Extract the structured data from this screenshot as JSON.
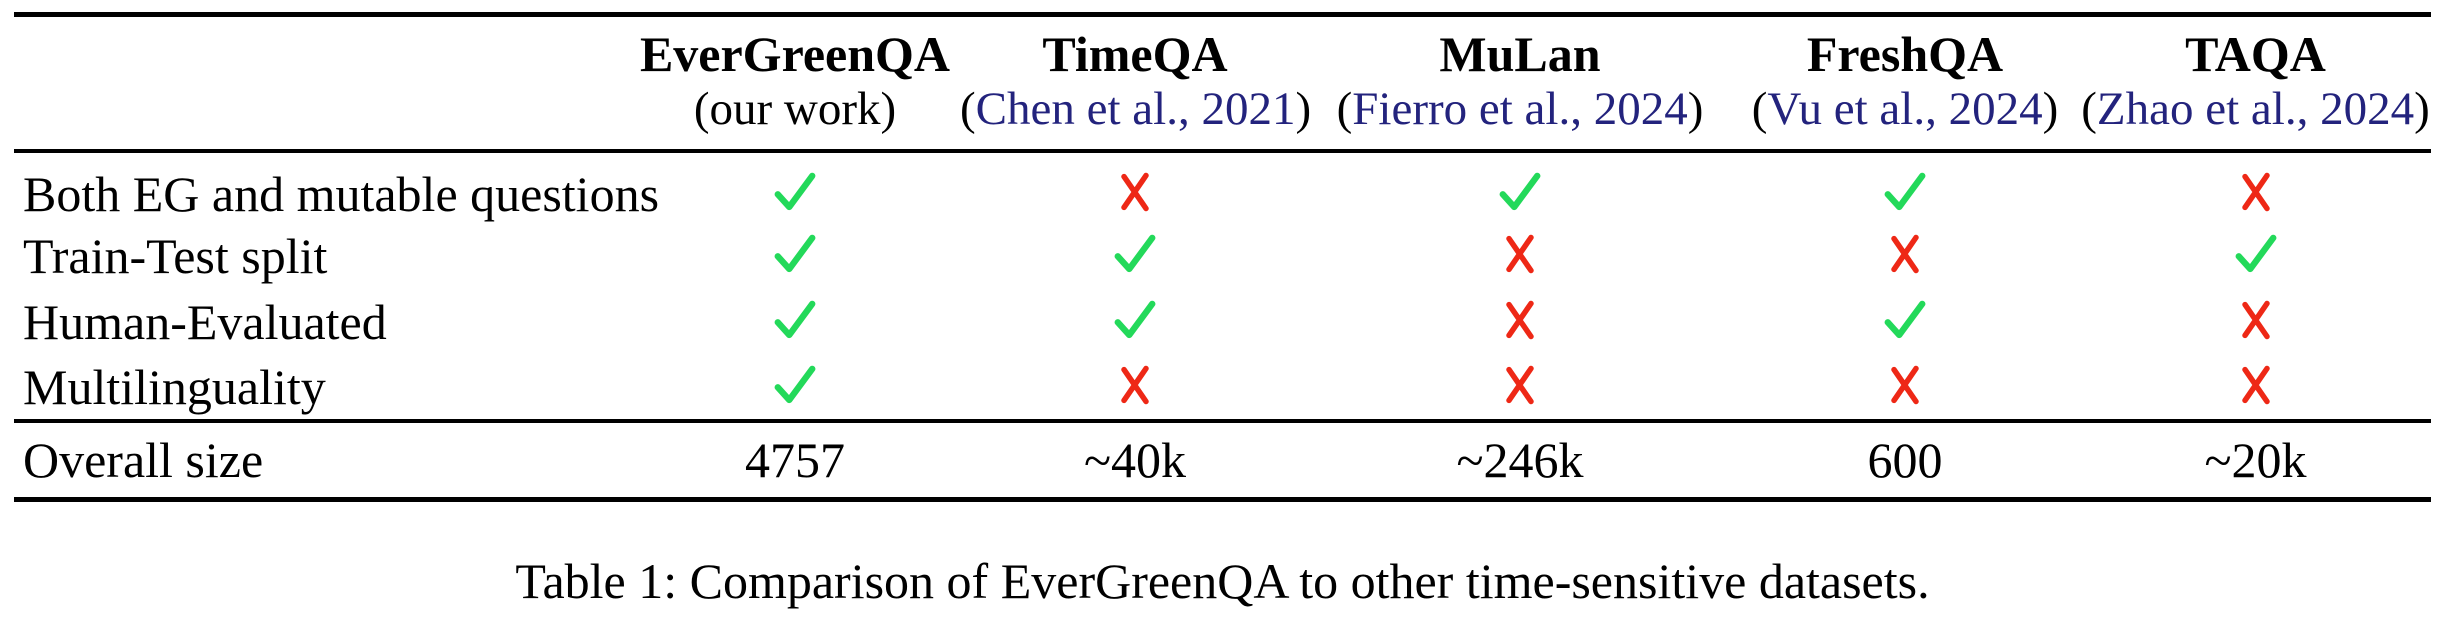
{
  "colors": {
    "check_green": "#23D95A",
    "cross_red": "#EE2816",
    "citation_navy": "#23237D",
    "rule_black": "#000000",
    "text_black": "#000000",
    "background": "#FFFFFF"
  },
  "punctuation": {
    "open_paren": "(",
    "close_paren": ")"
  },
  "icons": {
    "check": "green-check-icon",
    "cross": "red-cross-icon"
  },
  "table": {
    "header": {
      "columns": [
        {
          "name": "EverGreenQA",
          "subtitle": "(our work)",
          "citation": null
        },
        {
          "name": "TimeQA",
          "subtitle": null,
          "citation": "Chen et al., 2021"
        },
        {
          "name": "MuLan",
          "subtitle": null,
          "citation": "Fierro et al., 2024"
        },
        {
          "name": "FreshQA",
          "subtitle": null,
          "citation": "Vu et al., 2024"
        },
        {
          "name": "TAQA",
          "subtitle": null,
          "citation": "Zhao et al., 2024"
        }
      ]
    },
    "feature_rows": [
      {
        "label": "Both EG and mutable questions",
        "values": [
          "check",
          "cross",
          "check",
          "check",
          "cross"
        ]
      },
      {
        "label": "Train-Test split",
        "values": [
          "check",
          "check",
          "cross",
          "cross",
          "check"
        ]
      },
      {
        "label": "Human-Evaluated",
        "values": [
          "check",
          "check",
          "cross",
          "check",
          "cross"
        ]
      },
      {
        "label": "Multilinguality",
        "values": [
          "check",
          "cross",
          "cross",
          "cross",
          "cross"
        ]
      }
    ],
    "size_row": {
      "label": "Overall size",
      "values": [
        "4757",
        "~40k",
        "~246k",
        "600",
        "~20k"
      ]
    }
  },
  "caption": "Table 1: Comparison of EverGreenQA to other time-sensitive datasets."
}
